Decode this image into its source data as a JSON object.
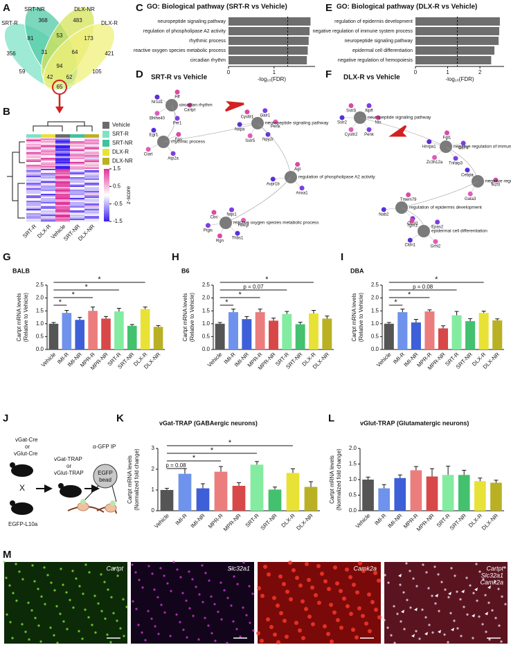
{
  "panels": [
    "A",
    "B",
    "C",
    "D",
    "E",
    "F",
    "G",
    "H",
    "I",
    "J",
    "K",
    "L",
    "M"
  ],
  "chart_data": [
    {
      "type": "venn",
      "sets": [
        "SRT-R",
        "SRT-NR",
        "DLX-NR",
        "DLX-R"
      ],
      "colors": [
        "#7de3c6",
        "#52c9a7",
        "#d6e35a",
        "#f0f07c"
      ],
      "regions": [
        356,
        368,
        483,
        421,
        81,
        53,
        173,
        31,
        64,
        59,
        94,
        105,
        42,
        62,
        65
      ]
    },
    {
      "type": "hbar",
      "title": "GO: Biological pathway (SRT-R vs Vehicle)",
      "categories": [
        "neuropeptide signaling pathway",
        "regulation of phospholipase A2 activity",
        "rhythmic process",
        "reactive oxygen species metabolic process",
        "circadian rhythm"
      ],
      "values": [
        1.8,
        1.78,
        1.76,
        1.74,
        1.72
      ],
      "color": "#6e6e6e",
      "xlim": [
        0,
        1.9
      ],
      "xticks": [
        0,
        1
      ],
      "threshold": 1.3,
      "xlabel": "-log₁₀(FDR)"
    },
    {
      "type": "hbar",
      "title": "GO: Biological pathway (DLX-R vs Vehicle)",
      "categories": [
        "regulation of epidermis development",
        "negative regulation of immune system process",
        "neuropeptide signaling pathway",
        "epidermal cell differentiation",
        "negative regulation of hemopoiesis"
      ],
      "values": [
        2.62,
        2.6,
        2.58,
        2.45,
        2.35
      ],
      "color": "#6e6e6e",
      "xlim": [
        0,
        2.75
      ],
      "xticks": [
        0,
        1,
        2
      ],
      "threshold": 1.3,
      "xlabel": "-log₁₀(FDR)"
    },
    {
      "type": "bar",
      "title": "BALB",
      "ylabel": [
        "Cartpt mRNA levels",
        "(Relative to Vehicle)"
      ],
      "categories": [
        "Vehicle",
        "IMI-R",
        "IMI-NR",
        "MPR-R",
        "MPR-NR",
        "SRT-R",
        "SRT-NR",
        "DLX-R",
        "DLX-NR"
      ],
      "values": [
        1.0,
        1.42,
        1.15,
        1.5,
        1.2,
        1.48,
        0.92,
        1.57,
        0.88
      ],
      "errors": [
        0.05,
        0.1,
        0.1,
        0.15,
        0.08,
        0.12,
        0.05,
        0.08,
        0.05
      ],
      "colors": [
        "#555555",
        "#6f93ec",
        "#3d5fd8",
        "#ec7d7d",
        "#d84848",
        "#84eca0",
        "#43c16e",
        "#e9e236",
        "#b9b123"
      ],
      "ylim": [
        0,
        2.5
      ],
      "yticks": [
        {
          "value": 0,
          "label": "0.0"
        },
        {
          "value": 0.5,
          "label": "0.5"
        },
        {
          "value": 1,
          "label": "1.0"
        },
        {
          "value": 1.5,
          "label": "1.5"
        },
        {
          "value": 2,
          "label": "2.0"
        },
        {
          "value": 2.5,
          "label": "2.5"
        }
      ],
      "annotations": [
        {
          "to": "IMI-R",
          "label": "*"
        },
        {
          "to": "MPR-R",
          "label": "*"
        },
        {
          "to": "SRT-R",
          "label": "*"
        },
        {
          "to": "DLX-R",
          "label": "*"
        }
      ]
    },
    {
      "type": "bar",
      "title": "B6",
      "ylabel": [
        "Cartpt mRNA levels",
        "(Relative to Vehicle)"
      ],
      "categories": [
        "Vehicle",
        "IMI-R",
        "IMI-NR",
        "MPR-R",
        "MPR-NR",
        "SRT-R",
        "SRT-NR",
        "DLX-R",
        "DLX-NR"
      ],
      "values": [
        1.0,
        1.45,
        1.18,
        1.45,
        1.12,
        1.38,
        0.98,
        1.4,
        1.2
      ],
      "errors": [
        0.05,
        0.12,
        0.1,
        0.12,
        0.1,
        0.1,
        0.08,
        0.12,
        0.1
      ],
      "colors": [
        "#555555",
        "#6f93ec",
        "#3d5fd8",
        "#ec7d7d",
        "#d84848",
        "#84eca0",
        "#43c16e",
        "#e9e236",
        "#b9b123"
      ],
      "ylim": [
        0,
        2.5
      ],
      "yticks": [
        {
          "value": 0,
          "label": "0.0"
        },
        {
          "value": 0.5,
          "label": "0.5"
        },
        {
          "value": 1,
          "label": "1.0"
        },
        {
          "value": 1.5,
          "label": "1.5"
        },
        {
          "value": 2,
          "label": "2.0"
        },
        {
          "value": 2.5,
          "label": "2.5"
        }
      ],
      "annotations": [
        {
          "to": "IMI-R",
          "label": "*"
        },
        {
          "to": "MPR-R",
          "label": "*"
        },
        {
          "to": "SRT-R",
          "label": "p = 0.07"
        },
        {
          "to": "DLX-R",
          "label": "*"
        }
      ]
    },
    {
      "type": "bar",
      "title": "DBA",
      "ylabel": [
        "Cartpt mRNA levels",
        "(Relative to Vehicle)"
      ],
      "categories": [
        "Vehicle",
        "IMI-R",
        "IMI-NR",
        "MPR-R",
        "MPR-NR",
        "SRT-R",
        "SRT-NR",
        "DLX-R",
        "DLX-NR"
      ],
      "values": [
        1.0,
        1.45,
        1.05,
        1.48,
        0.82,
        1.33,
        1.1,
        1.42,
        1.13
      ],
      "errors": [
        0.05,
        0.12,
        0.12,
        0.06,
        0.1,
        0.15,
        0.1,
        0.07,
        0.06
      ],
      "colors": [
        "#555555",
        "#6f93ec",
        "#3d5fd8",
        "#ec7d7d",
        "#d84848",
        "#84eca0",
        "#43c16e",
        "#e9e236",
        "#b9b123"
      ],
      "ylim": [
        0,
        2.5
      ],
      "yticks": [
        {
          "value": 0,
          "label": "0.0"
        },
        {
          "value": 0.5,
          "label": "0.5"
        },
        {
          "value": 1,
          "label": "1.0"
        },
        {
          "value": 1.5,
          "label": "1.5"
        },
        {
          "value": 2,
          "label": "2.0"
        },
        {
          "value": 2.5,
          "label": "2.5"
        }
      ],
      "annotations": [
        {
          "to": "IMI-R",
          "label": "*"
        },
        {
          "to": "MPR-R",
          "label": "*"
        },
        {
          "to": "SRT-R",
          "label": "p = 0.08"
        },
        {
          "to": "DLX-R",
          "label": "*"
        }
      ]
    },
    {
      "type": "bar",
      "title": "vGat-TRAP (GABAergic neurons)",
      "ylabel": [
        "Cartpt mRNA levels",
        "(Normalized fold change)"
      ],
      "categories": [
        "Vehicle",
        "IMI-R",
        "IMI-NR",
        "MPR-R",
        "MPR-NR",
        "SRT-R",
        "SRT-NR",
        "DLX-R",
        "DLX-NR"
      ],
      "values": [
        1.0,
        1.78,
        1.08,
        1.88,
        1.2,
        2.22,
        1.02,
        1.82,
        1.15
      ],
      "errors": [
        0.08,
        0.25,
        0.22,
        0.25,
        0.15,
        0.15,
        0.12,
        0.2,
        0.25
      ],
      "colors": [
        "#555555",
        "#6f93ec",
        "#3d5fd8",
        "#ec7d7d",
        "#d84848",
        "#84eca0",
        "#43c16e",
        "#e9e236",
        "#b9b123"
      ],
      "ylim": [
        0,
        3
      ],
      "yticks": [
        0,
        1,
        2,
        3
      ],
      "annotations": [
        {
          "to": "IMI-R",
          "label": "p = 0.08"
        },
        {
          "to": "MPR-R",
          "label": "*"
        },
        {
          "to": "SRT-R",
          "label": "*"
        },
        {
          "to": "DLX-R",
          "label": "*"
        }
      ]
    },
    {
      "type": "bar",
      "title": "vGlut-TRAP (Glutamatergic neurons)",
      "ylabel": [
        "Cartpt mRNA levels",
        "(Normalized fold change)"
      ],
      "categories": [
        "Vehicle",
        "IMI-R",
        "IMI-NR",
        "MPR-R",
        "MPR-NR",
        "SRT-R",
        "SRT-NR",
        "DLX-R",
        "DLX-NR"
      ],
      "values": [
        1.0,
        0.72,
        1.05,
        1.3,
        1.1,
        1.15,
        1.15,
        0.95,
        0.9
      ],
      "errors": [
        0.08,
        0.12,
        0.1,
        0.12,
        0.25,
        0.28,
        0.15,
        0.1,
        0.08
      ],
      "colors": [
        "#555555",
        "#6f93ec",
        "#3d5fd8",
        "#ec7d7d",
        "#d84848",
        "#84eca0",
        "#43c16e",
        "#e9e236",
        "#b9b123"
      ],
      "ylim": [
        0,
        2
      ],
      "yticks": [
        {
          "value": 0,
          "label": "0.0"
        },
        {
          "value": 0.5,
          "label": "0.5"
        },
        {
          "value": 1,
          "label": "1.0"
        },
        {
          "value": 1.5,
          "label": "1.5"
        },
        {
          "value": 2,
          "label": "2.0"
        }
      ],
      "annotations": []
    }
  ],
  "heatmap": {
    "legend": {
      "names": [
        "Vehicle",
        "SRT-R",
        "SRT-NR",
        "DLX-R",
        "DLX-NR"
      ],
      "colors": [
        "#6b6b6b",
        "#7de3c6",
        "#43c19e",
        "#e9e236",
        "#b9b123"
      ]
    },
    "columns": [
      "SRT-R",
      "DLX-R",
      "Vehicle",
      "SRT-NR",
      "DLX-NR"
    ],
    "colorbar": {
      "lim": [
        -1.5,
        1.5
      ],
      "ticks": [
        1.5,
        0.5,
        -0.5,
        -1.5
      ],
      "label": "z-score"
    }
  },
  "networks": [
    {
      "title": "SRT-R vs Vehicle",
      "hubs": [
        {
          "label": "circadian rhythm",
          "genes": [
            "Cartpt",
            "Per1",
            "Bhlhe40",
            "Nr1d1",
            "Hlf"
          ]
        },
        {
          "label": "rhythmic process",
          "genes": [
            "Atp2a",
            "Ciart",
            "Egr1",
            "Fos"
          ]
        },
        {
          "label": "neuropeptide signaling pathway",
          "genes": [
            "Sstr5",
            "Napa",
            "Cysltr1",
            "Galr1",
            "Penk",
            "Npy2r"
          ]
        },
        {
          "label": "regulation of phospholipase A2 activity",
          "genes": [
            "Avpr1b",
            "Agt",
            "Anxa1"
          ]
        },
        {
          "label": "reactive oxygen species metabolic process",
          "genes": [
            "Cbs",
            "Nqo1",
            "Hbegf",
            "Thbs1",
            "Rgn",
            "Ptgis"
          ]
        }
      ]
    },
    {
      "title": "DLX-R vs Vehicle",
      "hubs": [
        {
          "label": "neuropeptide signaling pathway",
          "genes": [
            "Nts",
            "Penk",
            "Cysltr2",
            "Sstr2",
            "Sstr3",
            "Npff"
          ]
        },
        {
          "label": "negative regulation of immune system process",
          "genes": [
            "Tnfaip3",
            "Zc3h12a",
            "Hnrpa1",
            "Fgl1",
            "Cd74"
          ]
        },
        {
          "label": "negative regulation of hemopoiesis",
          "genes": [
            "Gata3",
            "Cebpa",
            "Ikzf3"
          ]
        },
        {
          "label": "regulation of epidermis development",
          "genes": [
            "Nab2",
            "Tmem79",
            "Ovol1"
          ]
        },
        {
          "label": "epidermal cell differentiation",
          "genes": [
            "Tgm1",
            "Epas2",
            "Grhl2",
            "Cldn1"
          ]
        }
      ]
    }
  ],
  "diagram": {
    "cre_top": "vGat-Cre",
    "or_1": "or",
    "cre_bottom": "vGlut-Cre",
    "cross": "X",
    "reporter": "EGFP-L10a",
    "trap_top": "vGat-TRAP",
    "or_2": "or",
    "trap_bottom": "vGlut-TRAP",
    "ip": "α-GFP IP",
    "bead_1": "EGFP",
    "bead_2": "bead"
  },
  "microscopy": {
    "channels": [
      "Cartpt",
      "Slc32a1",
      "Camk2a"
    ],
    "merge": [
      "Cartpt",
      "Slc32a1",
      "Camk2a"
    ]
  }
}
